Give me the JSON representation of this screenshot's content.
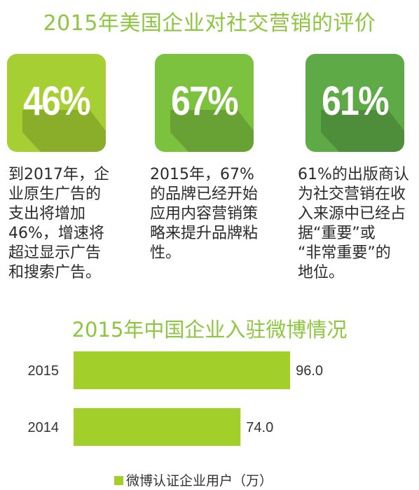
{
  "colors": {
    "card1": "#a5cf33",
    "card2": "#7cc23f",
    "card3": "#5daa46",
    "bar": "#a3cf2a",
    "title": "#8dc63f"
  },
  "top": {
    "title": "2015年美国企业对社交营销的评价",
    "cards": [
      {
        "value": "46%",
        "desc": [
          "到2017年，企",
          "业原生广告的",
          "支出将增加",
          "46%，增速将",
          "超过显示广告",
          "和搜索广告。"
        ]
      },
      {
        "value": "67%",
        "desc": [
          "2015年，67%",
          "的品牌已经开始",
          "应用内容营销策",
          "略来提升品牌粘",
          "性。"
        ]
      },
      {
        "value": "61%",
        "desc": [
          "61%的出版商认",
          "为社交营销在收",
          "入来源中已经占",
          "据“重要”或",
          "“非常重要”的",
          "地位。"
        ]
      }
    ]
  },
  "chart_data": {
    "type": "bar",
    "orientation": "horizontal",
    "title": "2015年中国企业入驻微博情况",
    "categories": [
      "2015",
      "2014"
    ],
    "series": [
      {
        "name": "微博认证企业用户（万）",
        "values": [
          96.0,
          74.0
        ],
        "labels": [
          "96.0",
          "74.0"
        ]
      }
    ],
    "xlim": [
      0,
      128
    ],
    "legend_position": "bottom",
    "grid": false
  }
}
